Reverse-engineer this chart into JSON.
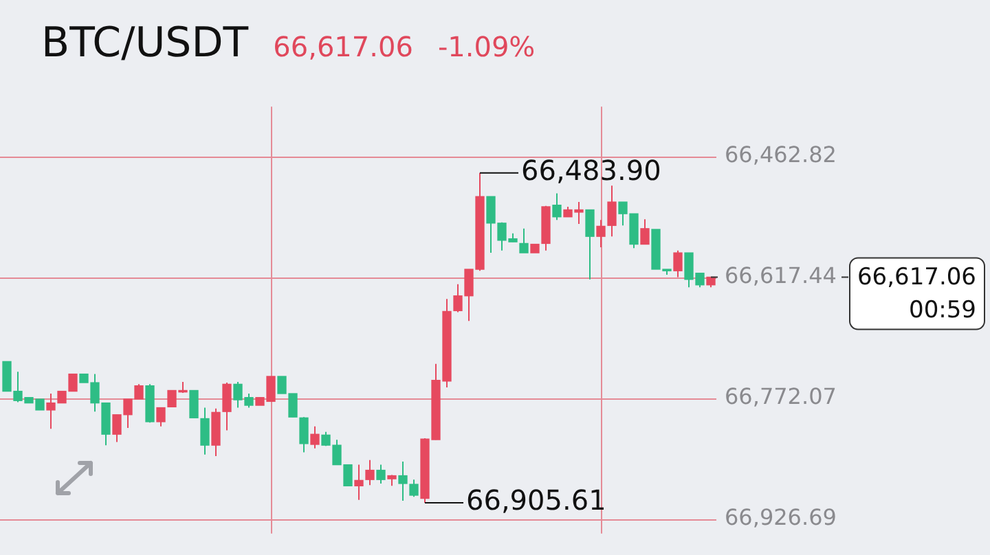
{
  "chart_data": {
    "type": "candlestick",
    "title": "BTC/USDT",
    "subtitle": "66,617.06",
    "annotations": [
      "-1.09%",
      "66,483.90",
      "66,905.61",
      "00:59"
    ],
    "categories": [
      null,
      null,
      null,
      null,
      null,
      null,
      null,
      null,
      null,
      null,
      null,
      null,
      null,
      null,
      null,
      null,
      null,
      null,
      null,
      null,
      null,
      null,
      null,
      null,
      null,
      null,
      null,
      null,
      null,
      null,
      null,
      null,
      null,
      null,
      null,
      null,
      null,
      null,
      null,
      null,
      null,
      null,
      null,
      null,
      null,
      null,
      null,
      null,
      null,
      null,
      null,
      null,
      null,
      null,
      null,
      null,
      null,
      null,
      null,
      null,
      null,
      null,
      null,
      null,
      null
    ],
    "ohlc": [
      [
        66725,
        66763,
        66725,
        66763
      ],
      [
        66763,
        66777,
        66738,
        66775
      ],
      [
        66771,
        66778,
        66771,
        66778
      ],
      [
        66773,
        66787,
        66773,
        66787
      ],
      [
        66787,
        66811,
        66766,
        66778
      ],
      [
        66778,
        66778,
        66763,
        66763
      ],
      [
        66763,
        66763,
        66741,
        66741
      ],
      [
        66741,
        66752,
        66741,
        66752
      ],
      [
        66752,
        66789,
        66741,
        66778
      ],
      [
        66778,
        66832,
        66778,
        66818
      ],
      [
        66818,
        66828,
        66793,
        66793
      ],
      [
        66793,
        66810,
        66773,
        66773
      ],
      [
        66773,
        66773,
        66754,
        66756
      ],
      [
        66756,
        66803,
        66754,
        66802
      ],
      [
        66802,
        66808,
        66784,
        66784
      ],
      [
        66783,
        66783,
        66762,
        66762
      ],
      [
        66764,
        66765,
        66751,
        66762
      ],
      [
        66762,
        66797,
        66762,
        66797
      ],
      [
        66798,
        66844,
        66784,
        66832
      ],
      [
        66832,
        66846,
        66785,
        66790
      ],
      [
        66789,
        66813,
        66752,
        66754
      ],
      [
        66754,
        66784,
        66751,
        66774
      ],
      [
        66771,
        66784,
        66766,
        66781
      ],
      [
        66781,
        66781,
        66771,
        66771
      ],
      [
        66776,
        66776,
        66744,
        66744
      ],
      [
        66744,
        66766,
        66744,
        66766
      ],
      [
        66766,
        66796,
        66766,
        66796
      ],
      [
        66797,
        66841,
        66796,
        66830
      ],
      [
        66831,
        66836,
        66808,
        66818
      ],
      [
        66819,
        66833,
        66815,
        66832
      ],
      [
        66832,
        66857,
        66825,
        66857
      ],
      [
        66857,
        66884,
        66857,
        66884
      ],
      [
        66884,
        66902,
        66857,
        66877
      ],
      [
        66876,
        66883,
        66851,
        66864
      ],
      [
        66864,
        66881,
        66857,
        66876
      ],
      [
        66875,
        66884,
        66870,
        66871
      ],
      [
        66871,
        66903,
        66853,
        66881
      ],
      [
        66882,
        66898,
        66876,
        66896
      ],
      [
        66900,
        66905.61,
        66823,
        66824
      ],
      [
        66825,
        66825,
        66728,
        66749
      ],
      [
        66750,
        66758,
        66645,
        66661
      ],
      [
        66660,
        66662,
        66626,
        66641
      ],
      [
        66641,
        66673,
        66607,
        66607
      ],
      [
        66607,
        66609,
        66483.9,
        66514
      ],
      [
        66514,
        66586,
        66514,
        66548
      ],
      [
        66548,
        66583,
        66547,
        66570
      ],
      [
        66568,
        66572,
        66561,
        66572
      ],
      [
        66574,
        66586,
        66555,
        66586
      ],
      [
        66586,
        66586,
        66575,
        66575
      ],
      [
        66574,
        66583,
        66526,
        66527
      ],
      [
        66525,
        66544,
        66510,
        66540
      ],
      [
        66540,
        66540,
        66527,
        66531
      ],
      [
        66534,
        66549,
        66521,
        66531
      ],
      [
        66531,
        66620,
        66531,
        66565
      ],
      [
        66565,
        66579,
        66544,
        66552
      ],
      [
        66551,
        66565,
        66500,
        66521
      ],
      [
        66521,
        66551,
        66521,
        66536
      ],
      [
        66536,
        66580,
        66536,
        66575
      ],
      [
        66575,
        66575,
        66543,
        66555
      ],
      [
        66556,
        66607,
        66556,
        66607
      ],
      [
        66607,
        66614,
        66607,
        66609
      ],
      [
        66609,
        66617,
        66583,
        66586
      ],
      [
        66586,
        66630,
        66586,
        66620
      ],
      [
        66612,
        66630,
        66612,
        66627
      ],
      [
        66627,
        66630,
        66617.06,
        66617.06
      ]
    ],
    "colors": [
      "#2ebd85",
      "#2ebd85",
      "#2ebd85",
      "#2ebd85",
      "#e6495f",
      "#e6495f",
      "#e6495f",
      "#2ebd85",
      "#2ebd85",
      "#2ebd85",
      "#e6495f",
      "#e6495f",
      "#e6495f",
      "#2ebd85",
      "#e6495f",
      "#e6495f",
      "#e6495f",
      "#2ebd85",
      "#2ebd85",
      "#e6495f",
      "#e6495f",
      "#2ebd85",
      "#2ebd85",
      "#e6495f",
      "#e6495f",
      "#2ebd85",
      "#2ebd85",
      "#2ebd85",
      "#e6495f",
      "#2ebd85",
      "#2ebd85",
      "#2ebd85",
      "#e6495f",
      "#e6495f",
      "#2ebd85",
      "#e6495f",
      "#2ebd85",
      "#2ebd85",
      "#e6495f",
      "#e6495f",
      "#e6495f",
      "#e6495f",
      "#e6495f",
      "#e6495f",
      "#2ebd85",
      "#2ebd85",
      "#2ebd85",
      "#2ebd85",
      "#e6495f",
      "#e6495f",
      "#2ebd85",
      "#e6495f",
      "#e6495f",
      "#2ebd85",
      "#e6495f",
      "#e6495f",
      "#2ebd85",
      "#2ebd85",
      "#e6495f",
      "#2ebd85",
      "#2ebd85",
      "#e6495f",
      "#2ebd85",
      "#2ebd85",
      "#e6495f"
    ],
    "ylim": [
      66945,
      66399
    ],
    "yticks": [
      {
        "value": 66462.82,
        "label": "66,462.82"
      },
      {
        "value": 66617.44,
        "label": "66,617.44"
      },
      {
        "value": 66772.07,
        "label": "66,772.07"
      },
      {
        "value": 66926.69,
        "label": "66,926.69"
      }
    ],
    "tick_labels": "y",
    "grid": "y",
    "ref_lines": [
      {
        "axis": "y",
        "value": 66617.06,
        "label": "66,617.06",
        "line_style": "dashed",
        "color": "#333333"
      }
    ],
    "legend": false
  }
}
